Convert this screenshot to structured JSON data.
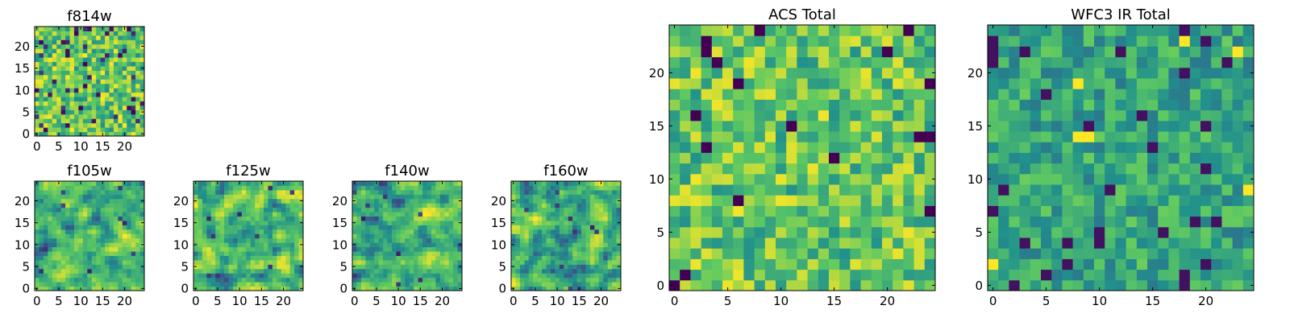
{
  "colormap": {
    "name": "viridis",
    "stops": [
      "#440154",
      "#3b528b",
      "#21918c",
      "#5ec962",
      "#fde725"
    ]
  },
  "chart_data": [
    {
      "type": "heatmap",
      "title": "f814w",
      "shape": [
        25,
        25
      ],
      "seed": 814,
      "xlim": [
        0,
        24
      ],
      "ylim": [
        0,
        24
      ],
      "xticks": [
        0,
        5,
        10,
        15,
        20
      ],
      "yticks": [
        0,
        5,
        10,
        15,
        20
      ],
      "style": "noisy"
    },
    {
      "type": "heatmap",
      "title": "f105w",
      "shape": [
        25,
        25
      ],
      "seed": 105,
      "xlim": [
        0,
        24
      ],
      "ylim": [
        0,
        24
      ],
      "xticks": [
        0,
        5,
        10,
        15,
        20
      ],
      "yticks": [
        0,
        5,
        10,
        15,
        20
      ],
      "style": "smooth"
    },
    {
      "type": "heatmap",
      "title": "f125w",
      "shape": [
        25,
        25
      ],
      "seed": 125,
      "xlim": [
        0,
        24
      ],
      "ylim": [
        0,
        24
      ],
      "xticks": [
        0,
        5,
        10,
        15,
        20
      ],
      "yticks": [
        0,
        5,
        10,
        15,
        20
      ],
      "style": "smooth"
    },
    {
      "type": "heatmap",
      "title": "f140w",
      "shape": [
        25,
        25
      ],
      "seed": 140,
      "xlim": [
        0,
        24
      ],
      "ylim": [
        0,
        24
      ],
      "xticks": [
        0,
        5,
        10,
        15,
        20
      ],
      "yticks": [
        0,
        5,
        10,
        15,
        20
      ],
      "style": "smooth"
    },
    {
      "type": "heatmap",
      "title": "f160w",
      "shape": [
        25,
        25
      ],
      "seed": 160,
      "xlim": [
        0,
        24
      ],
      "ylim": [
        0,
        24
      ],
      "xticks": [
        0,
        5,
        10,
        15,
        20
      ],
      "yticks": [
        0,
        5,
        10,
        15,
        20
      ],
      "style": "smooth"
    },
    {
      "type": "heatmap",
      "title": "ACS Total",
      "shape": [
        25,
        25
      ],
      "seed": 2024,
      "xlim": [
        0,
        24
      ],
      "ylim": [
        0,
        24
      ],
      "xticks": [
        0,
        5,
        10,
        15,
        20
      ],
      "yticks": [
        0,
        5,
        10,
        15,
        20
      ],
      "style": "bright"
    },
    {
      "type": "heatmap",
      "title": "WFC3 IR Total",
      "shape": [
        25,
        25
      ],
      "seed": 3301,
      "xlim": [
        0,
        24
      ],
      "ylim": [
        0,
        24
      ],
      "xticks": [
        0,
        5,
        10,
        15,
        20
      ],
      "yticks": [
        0,
        5,
        10,
        15,
        20
      ],
      "style": "mid"
    }
  ]
}
